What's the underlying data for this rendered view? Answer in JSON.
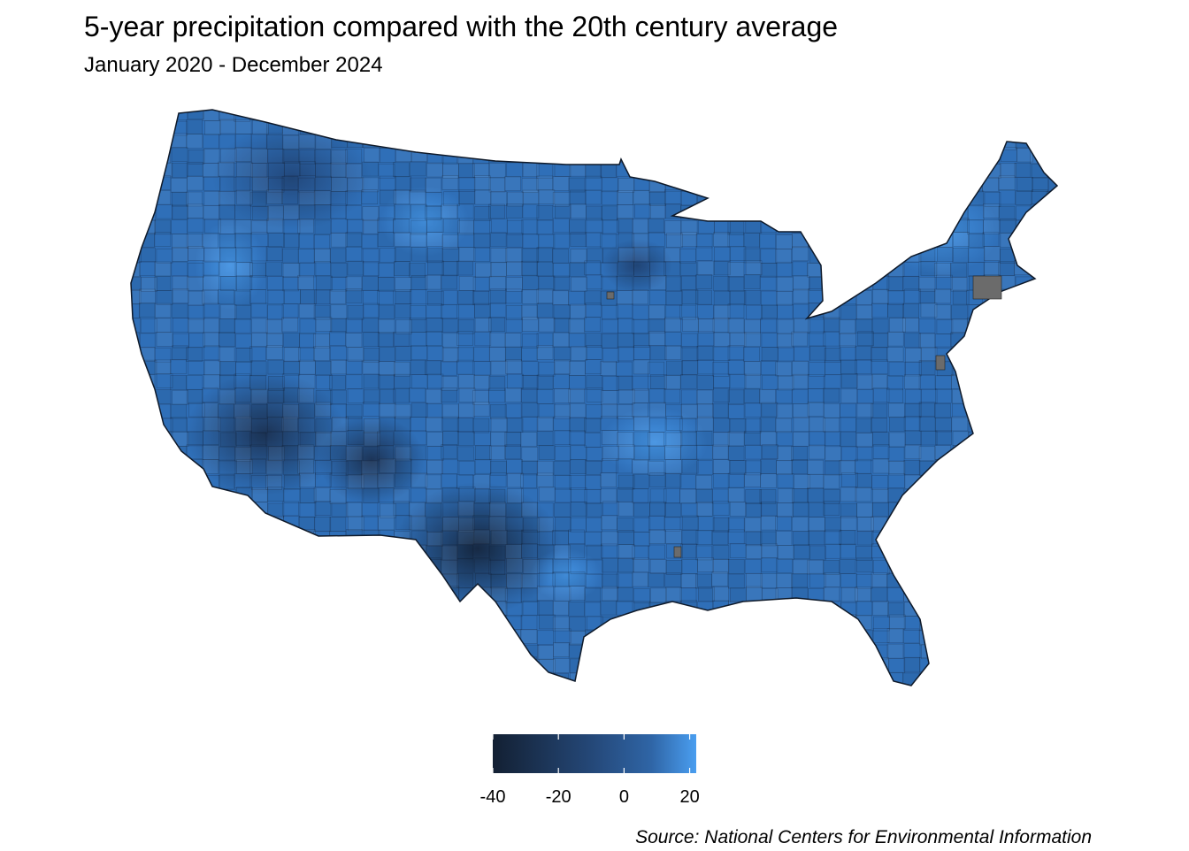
{
  "title": "5-year precipitation compared with the 20th century average",
  "subtitle": "January 2020 - December 2024",
  "source": "Source: National Centers for Environmental Information",
  "legend": {
    "min": -40,
    "max": 22,
    "ticks": [
      -40,
      -20,
      0,
      20
    ],
    "tick_labels": [
      "-40",
      "-20",
      "0",
      "20"
    ],
    "color_low": "#132033",
    "color_mid": "#2f65a6",
    "color_high": "#4a9ef0"
  },
  "map": {
    "base_color": "#2f6fb8",
    "missing_color": "#6b6b6b",
    "border_color": "#0f1a2a"
  },
  "chart_data": {
    "type": "heatmap",
    "region": "Contiguous United States counties",
    "value_description": "5-year precipitation compared with the 20th century average",
    "scale_range": [
      -40,
      22
    ],
    "scale_ticks": [
      -40,
      -20,
      0,
      20
    ]
  }
}
